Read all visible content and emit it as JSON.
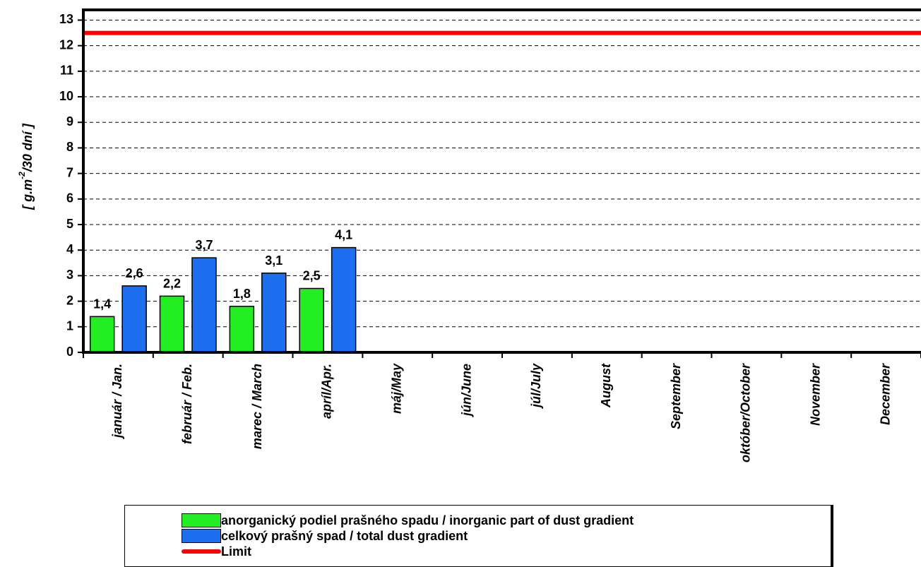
{
  "chart_data": {
    "type": "bar",
    "categories": [
      "január / Jan.",
      "február / Feb.",
      "marec / March",
      "apríl/Apr.",
      "máj/May",
      "jún/June",
      "júl/July",
      "August",
      "September",
      "október/October",
      "November",
      "December"
    ],
    "series": [
      {
        "name": "anorganický podiel prašného spadu / inorganic part of dust gradient",
        "values": [
          1.4,
          2.2,
          1.8,
          2.5,
          null,
          null,
          null,
          null,
          null,
          null,
          null,
          null
        ],
        "labels": [
          "1,4",
          "2,2",
          "1,8",
          "2,5",
          "",
          "",
          "",
          "",
          "",
          "",
          "",
          ""
        ],
        "color": "#22ee22"
      },
      {
        "name": "celkový prašný spad / total dust gradient",
        "values": [
          2.6,
          3.7,
          3.1,
          4.1,
          null,
          null,
          null,
          null,
          null,
          null,
          null,
          null
        ],
        "labels": [
          "2,6",
          "3,7",
          "3,1",
          "4,1",
          "",
          "",
          "",
          "",
          "",
          "",
          "",
          ""
        ],
        "color": "#1e6ff0"
      }
    ],
    "limit": {
      "name": "Limit",
      "value": 12.5,
      "color": "#ff0000"
    },
    "ylabel": "[ g.m-2/30 dní ]",
    "ylim": [
      0,
      13
    ],
    "yticks": [
      "0",
      "1",
      "2",
      "3",
      "4",
      "5",
      "6",
      "7",
      "8",
      "9",
      "10",
      "11",
      "12",
      "13"
    ],
    "grid": true,
    "legend_position": "bottom"
  },
  "legend": {
    "items": [
      {
        "label": "anorganický podiel prašného spadu / inorganic part of dust gradient",
        "color": "#22ee22",
        "kind": "box"
      },
      {
        "label": "celkový prašný spad / total dust gradient",
        "color": "#1e6ff0",
        "kind": "box"
      },
      {
        "label": "Limit",
        "color": "#ff0000",
        "kind": "line"
      }
    ]
  }
}
